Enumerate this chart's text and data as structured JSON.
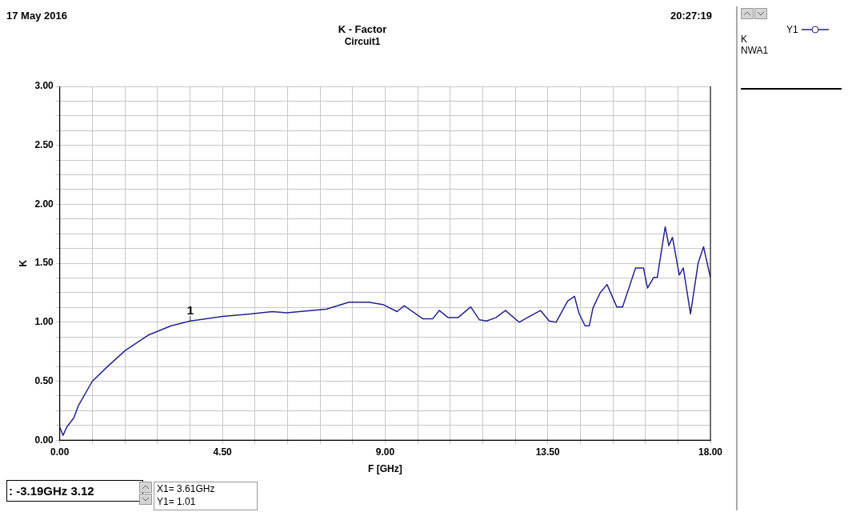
{
  "chart_data": {
    "type": "line",
    "title": "K - Factor",
    "subtitle": "Circuit1",
    "xlabel": "F [GHz]",
    "ylabel": "K",
    "series": [
      {
        "name": "Y1",
        "color": "#23238c",
        "x": [
          0,
          0.09,
          0.19,
          0.39,
          0.51,
          0.9,
          1.34,
          1.81,
          2.44,
          3.08,
          3.61,
          4.51,
          5.26,
          5.88,
          6.28,
          6.63,
          7.37,
          8.0,
          8.55,
          8.94,
          9.33,
          9.53,
          10.04,
          10.32,
          10.5,
          10.74,
          11.02,
          11.37,
          11.61,
          11.81,
          12.07,
          12.33,
          12.71,
          12.94,
          13.3,
          13.54,
          13.73,
          14.05,
          14.24,
          14.36,
          14.53,
          14.65,
          14.75,
          14.95,
          15.14,
          15.41,
          15.57,
          15.93,
          16.15,
          16.26,
          16.43,
          16.53,
          16.75,
          16.85,
          16.95,
          17.14,
          17.25,
          17.45,
          17.66,
          17.81,
          18.0
        ],
        "values": [
          0.11,
          0.04,
          0.11,
          0.19,
          0.29,
          0.5,
          0.63,
          0.76,
          0.89,
          0.97,
          1.01,
          1.05,
          1.07,
          1.09,
          1.08,
          1.09,
          1.11,
          1.17,
          1.17,
          1.15,
          1.09,
          1.14,
          1.03,
          1.03,
          1.1,
          1.04,
          1.04,
          1.13,
          1.02,
          1.01,
          1.04,
          1.1,
          1.0,
          1.04,
          1.1,
          1.01,
          1.0,
          1.18,
          1.22,
          1.08,
          0.97,
          0.97,
          1.12,
          1.25,
          1.32,
          1.13,
          1.13,
          1.46,
          1.46,
          1.29,
          1.38,
          1.38,
          1.81,
          1.65,
          1.72,
          1.4,
          1.46,
          1.07,
          1.5,
          1.64,
          1.38
        ]
      }
    ],
    "xlim": [
      0,
      18
    ],
    "xticks": [
      {
        "value": 0,
        "label": "0.00"
      },
      {
        "value": 0.9,
        "label": null
      },
      {
        "value": 1.8,
        "label": null
      },
      {
        "value": 2.7,
        "label": null
      },
      {
        "value": 3.6,
        "label": null
      },
      {
        "value": 4.5,
        "label": "4.50"
      },
      {
        "value": 5.4,
        "label": null
      },
      {
        "value": 6.3,
        "label": null
      },
      {
        "value": 7.2,
        "label": null
      },
      {
        "value": 8.1,
        "label": null
      },
      {
        "value": 9,
        "label": "9.00"
      },
      {
        "value": 9.9,
        "label": null
      },
      {
        "value": 10.8,
        "label": null
      },
      {
        "value": 11.7,
        "label": null
      },
      {
        "value": 12.6,
        "label": null
      },
      {
        "value": 13.5,
        "label": "13.50"
      },
      {
        "value": 14.4,
        "label": null
      },
      {
        "value": 15.3,
        "label": null
      },
      {
        "value": 16.2,
        "label": null
      },
      {
        "value": 17.1,
        "label": null
      },
      {
        "value": 18,
        "label": "18.00"
      }
    ],
    "ylim": [
      0,
      3
    ],
    "yticks": [
      {
        "value": 0,
        "label": "0.00"
      },
      {
        "value": 0.125,
        "label": null
      },
      {
        "value": 0.25,
        "label": null
      },
      {
        "value": 0.375,
        "label": null
      },
      {
        "value": 0.5,
        "label": "0.50"
      },
      {
        "value": 0.625,
        "label": null
      },
      {
        "value": 0.75,
        "label": null
      },
      {
        "value": 0.875,
        "label": null
      },
      {
        "value": 1,
        "label": "1.00"
      },
      {
        "value": 1.125,
        "label": null
      },
      {
        "value": 1.25,
        "label": null
      },
      {
        "value": 1.375,
        "label": null
      },
      {
        "value": 1.5,
        "label": "1.50"
      },
      {
        "value": 1.625,
        "label": null
      },
      {
        "value": 1.75,
        "label": null
      },
      {
        "value": 1.875,
        "label": null
      },
      {
        "value": 2,
        "label": "2.00"
      },
      {
        "value": 2.125,
        "label": null
      },
      {
        "value": 2.25,
        "label": null
      },
      {
        "value": 2.375,
        "label": null
      },
      {
        "value": 2.5,
        "label": "2.50"
      },
      {
        "value": 2.625,
        "label": null
      },
      {
        "value": 2.75,
        "label": null
      },
      {
        "value": 2.875,
        "label": null
      },
      {
        "value": 3,
        "label": "3.00"
      }
    ],
    "grid": true,
    "legend": "top right",
    "line_style": "solid",
    "annotations": [
      "17 May 2016",
      "20:27:19",
      ": -3.19GHz 3.12",
      "X1= 3.61GHz",
      "Y1= 1.01",
      "K",
      "NWA1",
      {
        "text": "1",
        "x": 3.61,
        "y": 1.01
      }
    ]
  }
}
